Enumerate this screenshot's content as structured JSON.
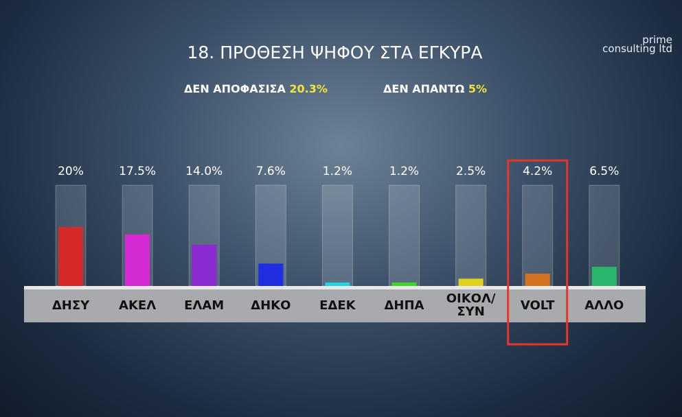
{
  "chart_data": {
    "type": "bar",
    "title": "18. ΠΡΟΘΕΣΗ ΨΗΦΟΥ ΣΤΑ ΕΓΚΥΡΑ",
    "annotations": [
      {
        "label": "ΔΕΝ ΑΠΟΦΑΣΙΣΑ",
        "value_label": "20.3%"
      },
      {
        "label": "ΔΕΝ ΑΠΑΝΤΩ",
        "value_label": "5%"
      }
    ],
    "logo": [
      "prime",
      "consulting ltd"
    ],
    "categories": [
      "ΔΗΣΥ",
      "ΑΚΕΛ",
      "ΕΛΑΜ",
      "ΔΗΚΟ",
      "ΕΔΕΚ",
      "ΔΗΠΑ",
      "ΟΙΚΟΛ/ ΣΥΝ",
      "VOLT",
      "ΑΛΛΟ"
    ],
    "values": [
      20,
      17.5,
      14,
      7.6,
      1.2,
      1.2,
      2.5,
      4.2,
      6.5
    ],
    "value_labels": [
      "20%",
      "17.5%",
      "14.0%",
      "7.6%",
      "1.2%",
      "1.2%",
      "2.5%",
      "4.2%",
      "6.5%"
    ],
    "colors": [
      "#d42a2a",
      "#d42bd4",
      "#8b2ad0",
      "#1e2ee0",
      "#23d3e0",
      "#3ed62a",
      "#e0d21e",
      "#d4721e",
      "#2bb56c"
    ],
    "highlight": "VOLT"
  }
}
